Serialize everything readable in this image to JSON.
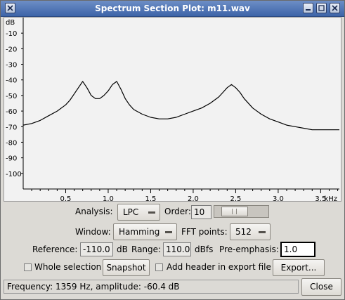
{
  "window": {
    "title": "Spectrum Section Plot: m11.wav",
    "buttons": [
      "close-icon",
      "minimize-icon",
      "maximize-icon",
      "close-icon"
    ]
  },
  "plot": {
    "y_unit": "dB",
    "y_ticks": [
      "-10",
      "-20",
      "-30",
      "-40",
      "-50",
      "-60",
      "-70",
      "-80",
      "-90",
      "-100"
    ],
    "x_unit": "kHz",
    "x_ticks": [
      "0.5",
      "1.0",
      "1.5",
      "2.0",
      "2.5",
      "3.0",
      "3.5"
    ]
  },
  "chart_data": {
    "type": "line",
    "xlabel": "kHz",
    "ylabel": "dB",
    "xlim": [
      0,
      3.72
    ],
    "ylim": [
      -110,
      0
    ],
    "series": [
      {
        "x": [
          0.0,
          0.1,
          0.2,
          0.3,
          0.4,
          0.5,
          0.55,
          0.6,
          0.65,
          0.7,
          0.75,
          0.8,
          0.85,
          0.9,
          0.95,
          1.0,
          1.05,
          1.1,
          1.15,
          1.2,
          1.25,
          1.3,
          1.4,
          1.5,
          1.6,
          1.7,
          1.8,
          1.9,
          2.0,
          2.1,
          2.2,
          2.3,
          2.35,
          2.4,
          2.45,
          2.5,
          2.55,
          2.6,
          2.7,
          2.8,
          2.9,
          3.0,
          3.1,
          3.2,
          3.3,
          3.4,
          3.5,
          3.6,
          3.72
        ],
        "y": [
          -69,
          -68,
          -66,
          -63,
          -60,
          -56,
          -53,
          -49,
          -45,
          -41,
          -45,
          -50,
          -52,
          -52,
          -50,
          -47,
          -43,
          -41,
          -46,
          -52,
          -56,
          -59,
          -62,
          -64,
          -65,
          -65,
          -64,
          -62,
          -60,
          -58,
          -55,
          -51,
          -48,
          -45,
          -43,
          -45,
          -48,
          -52,
          -58,
          -62,
          -65,
          -67,
          -69,
          -70,
          -71,
          -72,
          -72,
          -72,
          -72
        ]
      }
    ]
  },
  "controls": {
    "analysis_label": "Analysis:",
    "analysis_value": "LPC",
    "order_label": "Order:",
    "order_value": "10",
    "window_label": "Window:",
    "window_value": "Hamming",
    "fft_label": "FFT points:",
    "fft_value": "512",
    "reference_label": "Reference:",
    "reference_value": "-110.0",
    "reference_unit": "dB",
    "range_label": "Range:",
    "range_value": "110.0",
    "range_unit": "dBfs",
    "preemph_label": "Pre-emphasis:",
    "preemph_value": "1.0",
    "whole_selection_label": "Whole selection",
    "snapshot_label": "Snapshot",
    "add_header_label": "Add header in export file",
    "export_label": "Export...",
    "close_label": "Close"
  },
  "status": {
    "text": "Frequency: 1359 Hz, amplitude: -60.4 dB"
  }
}
